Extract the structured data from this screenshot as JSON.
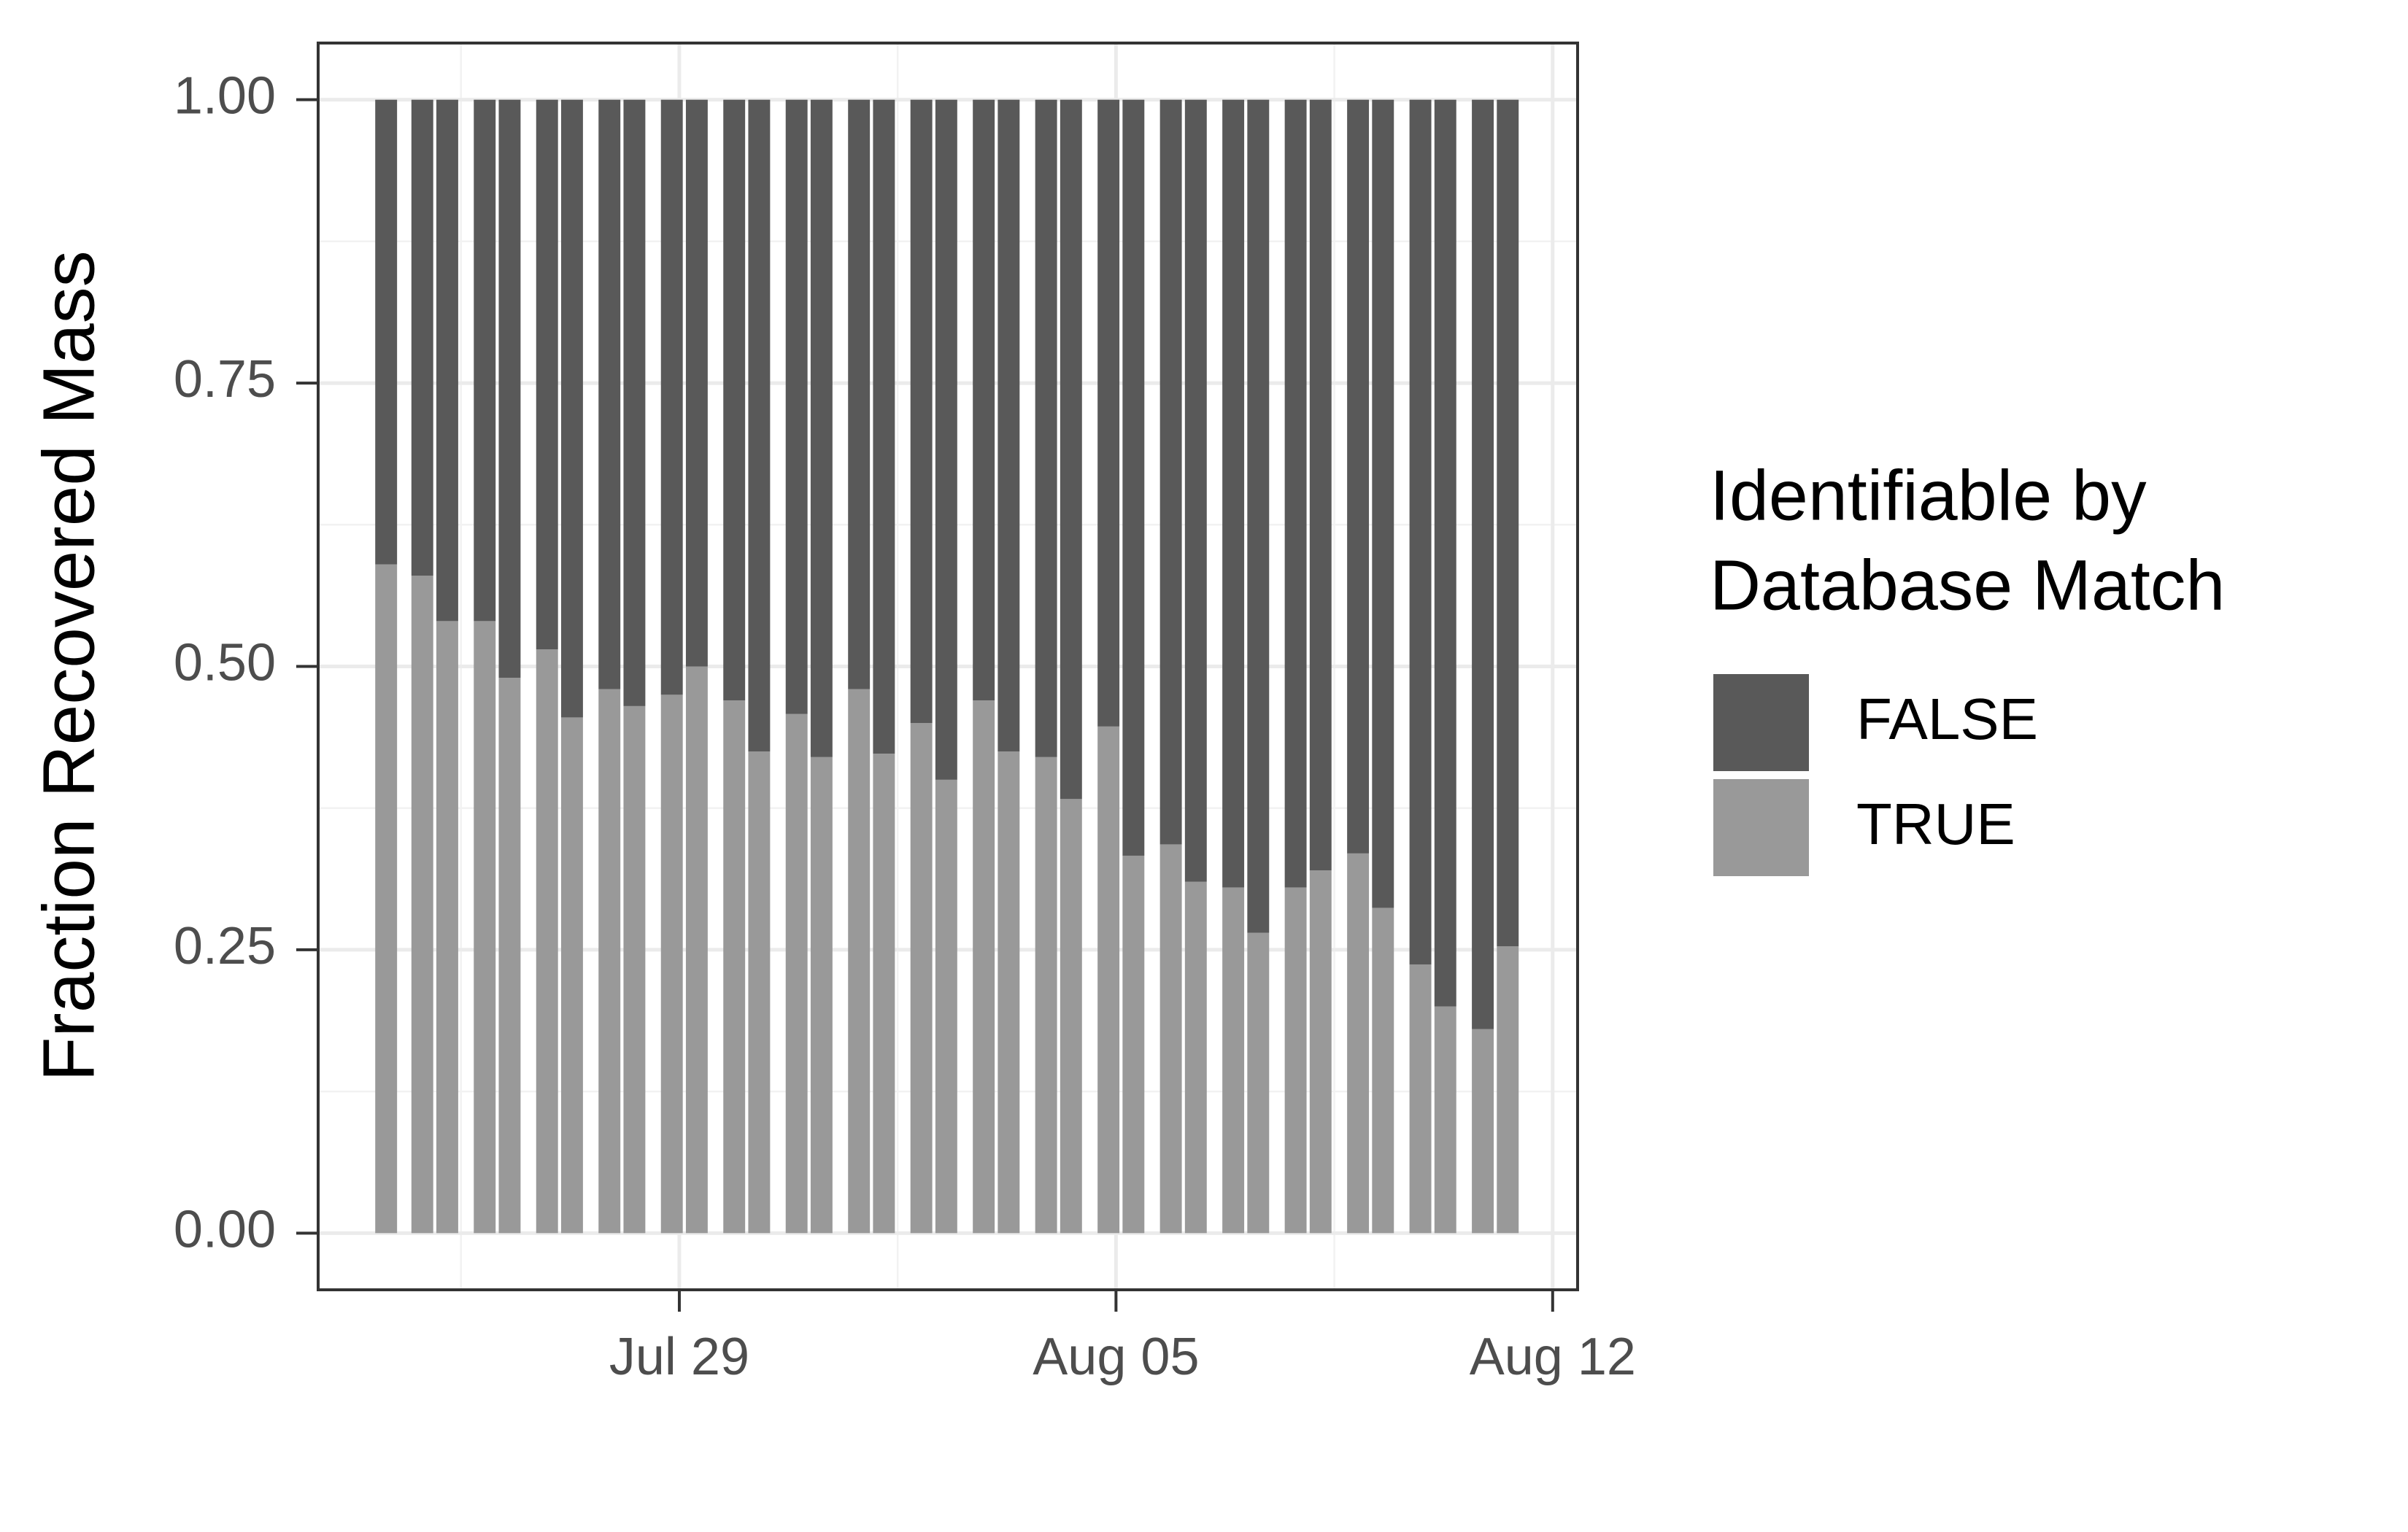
{
  "chart_data": {
    "type": "stacked_bar",
    "y_label": "Fraction Recovered Mass",
    "legend_title": [
      "Identifiable by",
      "Database Match"
    ],
    "x": [
      24.3,
      24.88,
      25.28,
      25.88,
      26.28,
      26.88,
      27.28,
      27.88,
      28.28,
      28.88,
      29.28,
      29.88,
      30.28,
      30.88,
      31.28,
      31.88,
      32.28,
      32.88,
      33.28,
      33.88,
      34.28,
      34.88,
      35.28,
      35.88,
      36.28,
      36.88,
      37.28,
      37.88,
      38.28,
      38.88,
      39.28,
      39.88,
      40.28,
      40.88,
      41.28,
      41.88,
      42.28
    ],
    "series": [
      {
        "name": "FALSE",
        "color": "#595959",
        "values": [
          0.41,
          0.42,
          0.46,
          0.46,
          0.51,
          0.485,
          0.545,
          0.52,
          0.535,
          0.525,
          0.5,
          0.53,
          0.575,
          0.542,
          0.58,
          0.52,
          0.577,
          0.55,
          0.6,
          0.53,
          0.575,
          0.58,
          0.617,
          0.553,
          0.667,
          0.657,
          0.69,
          0.695,
          0.735,
          0.695,
          0.68,
          0.665,
          0.713,
          0.763,
          0.8,
          0.82,
          0.747
        ]
      },
      {
        "name": "TRUE",
        "color": "#999999",
        "values": [
          0.59,
          0.58,
          0.54,
          0.54,
          0.49,
          0.515,
          0.455,
          0.48,
          0.465,
          0.475,
          0.5,
          0.47,
          0.425,
          0.458,
          0.42,
          0.48,
          0.423,
          0.45,
          0.4,
          0.47,
          0.425,
          0.42,
          0.383,
          0.447,
          0.333,
          0.343,
          0.31,
          0.305,
          0.265,
          0.305,
          0.32,
          0.335,
          0.287,
          0.237,
          0.2,
          0.18,
          0.253
        ]
      }
    ],
    "xlim": [
      23.21,
      43.4
    ],
    "xticks": [
      {
        "value": 29,
        "label": "Jul 29"
      },
      {
        "value": 36,
        "label": "Aug 05"
      },
      {
        "value": 43,
        "label": "Aug 12"
      }
    ],
    "ylim": [
      -0.05,
      1.05
    ],
    "yticks": [
      {
        "value": 0,
        "label": "0.00"
      },
      0.25,
      {
        "value": 0.5,
        "label": "0.50"
      },
      0.75,
      {
        "value": 1,
        "label": "1.00"
      }
    ],
    "grid": true,
    "legend": "right"
  }
}
